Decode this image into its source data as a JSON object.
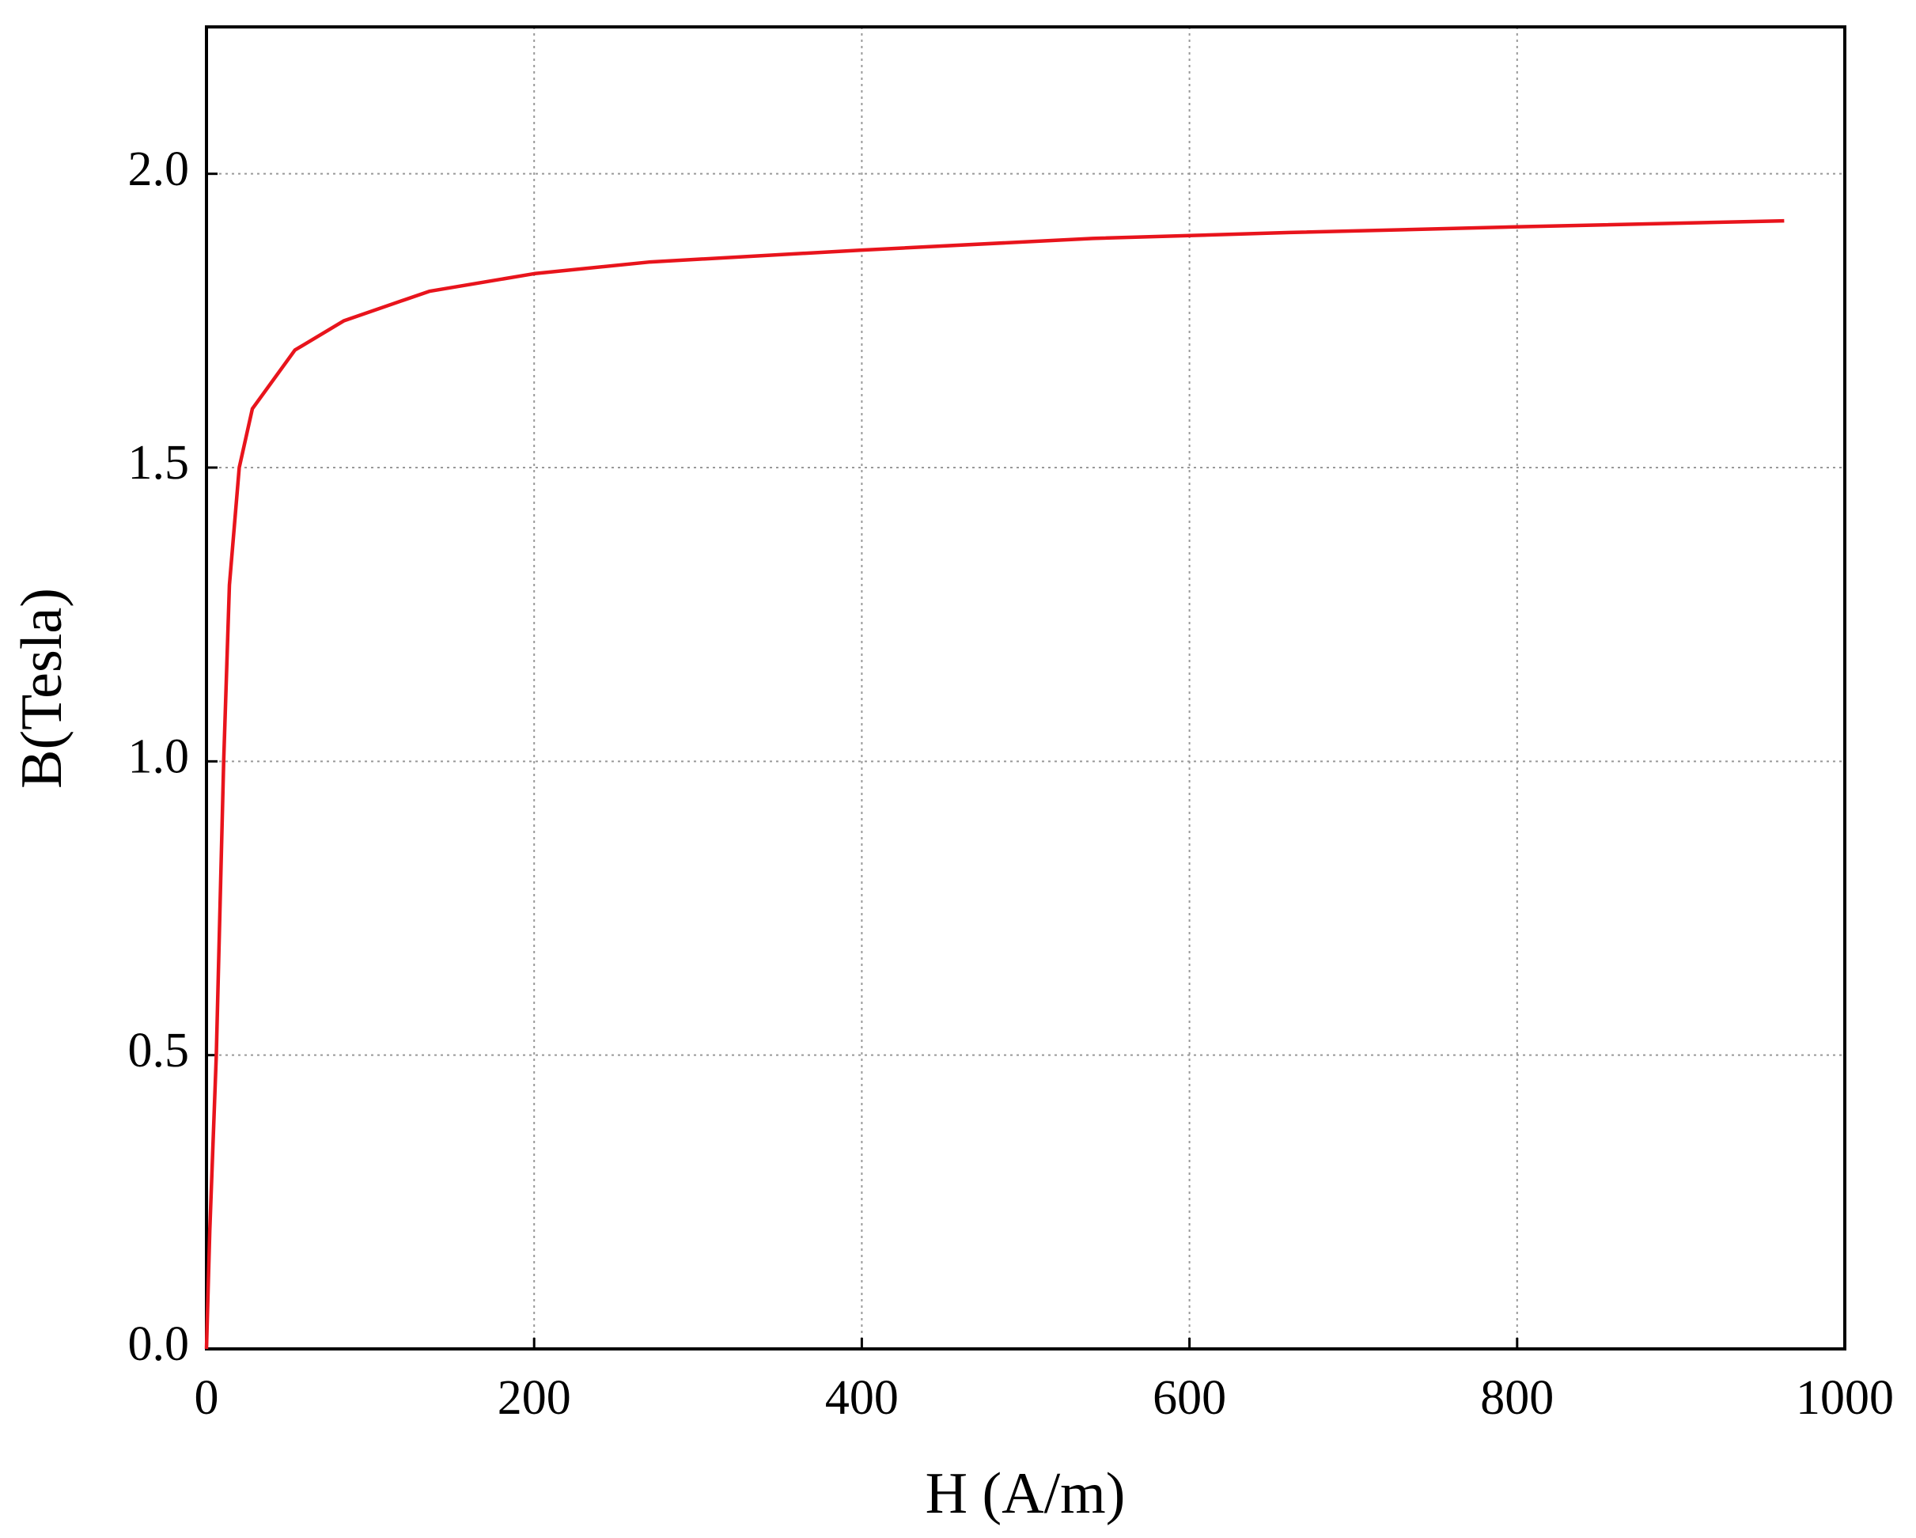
{
  "chart_data": {
    "type": "line",
    "xlabel": "H (A/m)",
    "ylabel": "B(Tesla)",
    "x": [
      0,
      2,
      6,
      10.5,
      14,
      20,
      28,
      54,
      84,
      136,
      200,
      271,
      399,
      541,
      661,
      804,
      963
    ],
    "series": [
      {
        "color": "#e8141c",
        "values": [
          0,
          0.2,
          0.5,
          1.0,
          1.3,
          1.5,
          1.6,
          1.7,
          1.75,
          1.8,
          1.83,
          1.85,
          1.87,
          1.89,
          1.9,
          1.91,
          1.92
        ]
      }
    ],
    "xlim": [
      0,
      1000
    ],
    "xticks": [
      0,
      200,
      400,
      600,
      800,
      1000
    ],
    "ylim": [
      0,
      2.25
    ],
    "yticks": [
      {
        "value": 0,
        "label": "0.0"
      },
      0.5,
      {
        "value": 1,
        "label": "1.0"
      },
      1.5,
      {
        "value": 2,
        "label": "2.0"
      }
    ],
    "grid": true
  }
}
